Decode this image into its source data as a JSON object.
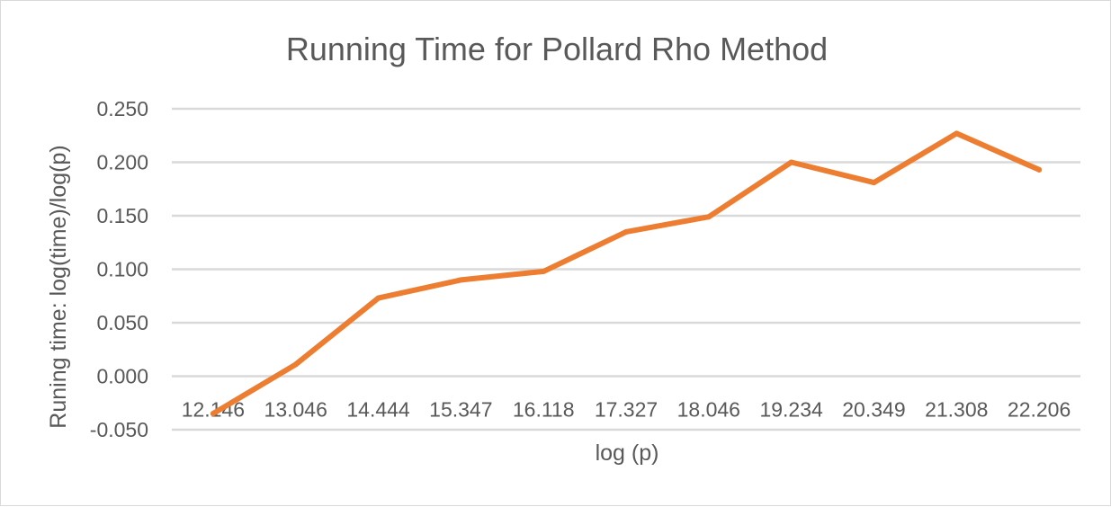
{
  "chart_data": {
    "type": "line",
    "title": "Running Time for Pollard Rho Method",
    "xlabel": "log (p)",
    "ylabel": "Runing time: log(time)/log(p)",
    "categories": [
      "12.146",
      "13.046",
      "14.444",
      "15.347",
      "16.118",
      "17.327",
      "18.046",
      "19.234",
      "20.349",
      "21.308",
      "22.206"
    ],
    "series": [
      {
        "values": [
          -0.035,
          0.011,
          0.073,
          0.09,
          0.098,
          0.135,
          0.149,
          0.2,
          0.181,
          0.227,
          0.193
        ]
      }
    ],
    "y_ticks": [
      "0.250",
      "0.200",
      "0.150",
      "0.100",
      "0.050",
      "0.000",
      "-0.050"
    ],
    "ylim": [
      -0.05,
      0.25
    ],
    "grid": true,
    "legend": "none",
    "line_color": "#ed7d31",
    "grid_color": "#d9d9d9",
    "text_color": "#595959"
  }
}
